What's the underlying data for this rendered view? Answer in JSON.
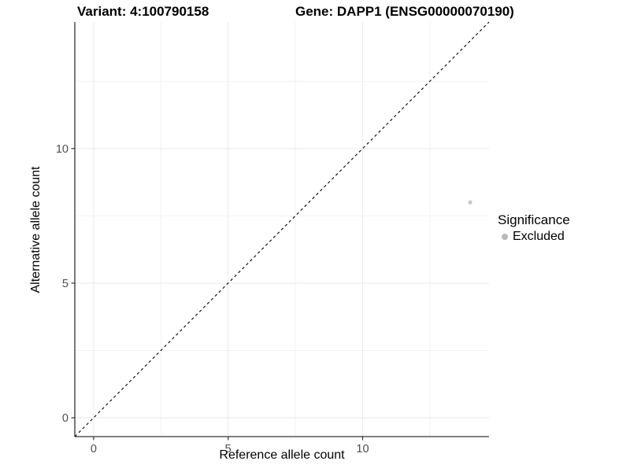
{
  "title": {
    "variant": "Variant: 4:100790158",
    "gene": "Gene: DAPP1 (ENSG00000070190)"
  },
  "legend": {
    "title": "Significance",
    "items": [
      {
        "label": "Excluded",
        "color": "#b9b9b9"
      }
    ]
  },
  "colors": {
    "axis": "#333333",
    "tick_label": "#4d4d4d",
    "grid_major": "#e9e9e9",
    "grid_minor": "#f2f2f2",
    "reference_line": "#000000",
    "point": "#c9c9c9",
    "background": "#ffffff"
  },
  "chart_data": {
    "type": "scatter",
    "title": "Variant: 4:100790158 — Gene: DAPP1 (ENSG00000070190)",
    "xlabel": "Reference allele count",
    "ylabel": "Alternative allele count",
    "xlim": [
      -0.7,
      14.7
    ],
    "ylim": [
      -0.7,
      14.7
    ],
    "x_ticks": [
      0,
      5,
      10
    ],
    "y_ticks": [
      0,
      5,
      10
    ],
    "x_minor_ticks": [
      2.5,
      7.5,
      12.5
    ],
    "y_minor_ticks": [
      2.5,
      7.5,
      12.5
    ],
    "grid": true,
    "legend_position": "right",
    "series": [
      {
        "name": "Excluded",
        "color": "#c9c9c9",
        "points": [
          {
            "x": 14,
            "y": 8
          }
        ]
      }
    ],
    "reference_line": {
      "slope": 1,
      "intercept": 0,
      "linestyle": "dashed"
    }
  }
}
